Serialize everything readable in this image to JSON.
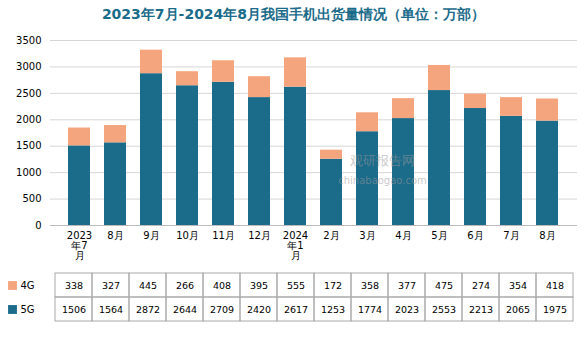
{
  "chart_data": {
    "type": "bar",
    "title": "2023年7月-2024年8月我国手机出货量情况（单位：万部）",
    "categories": [
      "2023\n年7\n月",
      "8月",
      "9月",
      "10月",
      "11月",
      "12月",
      "2024\n年1\n月",
      "2月",
      "3月",
      "4月",
      "5月",
      "6月",
      "7月",
      "8月"
    ],
    "series": [
      {
        "name": "5G",
        "color": "#1B6B8A",
        "values": [
          1506,
          1564,
          2872,
          2644,
          2709,
          2420,
          2617,
          1253,
          1774,
          2023,
          2553,
          2213,
          2065,
          1975
        ]
      },
      {
        "name": "4G",
        "color": "#F4A57E",
        "values": [
          338,
          327,
          445,
          266,
          408,
          395,
          555,
          172,
          358,
          377,
          475,
          274,
          354,
          418
        ]
      }
    ],
    "stacked": true,
    "ylim": [
      0,
      3500
    ],
    "yticks": [
      0,
      500,
      1000,
      1500,
      2000,
      2500,
      3000,
      3500
    ],
    "grid": true,
    "legend": "bottom",
    "data_labels": true,
    "annotations": [
      "观研报告网",
      "chinabaogao.com"
    ]
  }
}
